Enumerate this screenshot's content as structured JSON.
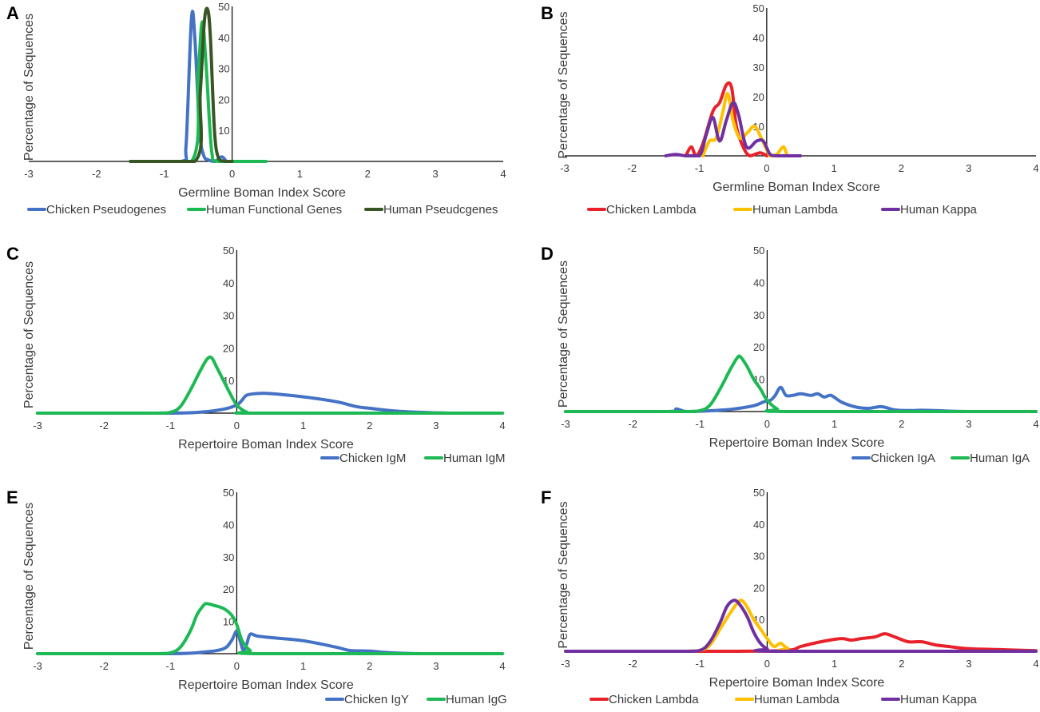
{
  "figure": {
    "ylabel": "Percentage of Sequences",
    "xticks": [
      "-3",
      "-2",
      "-1",
      "0",
      "1",
      "2",
      "3",
      "4"
    ],
    "yticks": [
      "10",
      "20",
      "30",
      "40",
      "50"
    ]
  },
  "colors": {
    "chicken_blue": "#4472c4",
    "human_green": "#1db954",
    "human_pseudo_darkgreen": "#375623",
    "chicken_lambda_red": "#e8212a",
    "human_lambda_yellow": "#ffc000",
    "human_kappa_purple": "#7030a0",
    "axis": "#000000"
  },
  "chart_data": [
    {
      "id": "A",
      "type": "line",
      "letter": "A",
      "xlabel": "Germline Boman Index Score",
      "ylabel": "Percentage of Sequences",
      "xlim": [
        -3,
        4
      ],
      "ylim": [
        0,
        50
      ],
      "legend_position": "bottom",
      "series": [
        {
          "name": "Chicken Pseudogenes",
          "color": "#4472c4",
          "points": [
            [
              -1.5,
              0
            ],
            [
              -0.75,
              0
            ],
            [
              -0.68,
              5
            ],
            [
              -0.6,
              46
            ],
            [
              -0.55,
              40
            ],
            [
              -0.48,
              10
            ],
            [
              -0.42,
              2
            ],
            [
              -0.35,
              0.5
            ],
            [
              -0.25,
              0
            ],
            [
              -0.15,
              1.5
            ],
            [
              -0.08,
              0
            ],
            [
              0,
              0
            ]
          ]
        },
        {
          "name": "Human Functional Genes",
          "color": "#1db954",
          "points": [
            [
              -1.5,
              0
            ],
            [
              -0.6,
              0
            ],
            [
              -0.5,
              28
            ],
            [
              -0.44,
              45
            ],
            [
              -0.38,
              30
            ],
            [
              -0.3,
              3
            ],
            [
              -0.2,
              0
            ],
            [
              0.5,
              0
            ]
          ]
        },
        {
          "name": "Human Pseudcgenes",
          "color": "#375623",
          "points": [
            [
              -1.5,
              0
            ],
            [
              -0.55,
              0
            ],
            [
              -0.47,
              22
            ],
            [
              -0.41,
              45
            ],
            [
              -0.36,
              49
            ],
            [
              -0.32,
              40
            ],
            [
              -0.26,
              10
            ],
            [
              -0.2,
              1
            ],
            [
              -0.1,
              0
            ],
            [
              0,
              0
            ]
          ]
        }
      ]
    },
    {
      "id": "B",
      "type": "line",
      "letter": "B",
      "xlabel": "Germline Boman Index Score",
      "ylabel": "Percentage of Sequences",
      "xlim": [
        -3,
        4
      ],
      "ylim": [
        0,
        50
      ],
      "legend_position": "bottom",
      "series": [
        {
          "name": "Chicken Lambda",
          "color": "#e8212a",
          "points": [
            [
              -1.2,
              0
            ],
            [
              -1.12,
              3
            ],
            [
              -1.05,
              0
            ],
            [
              -0.95,
              4
            ],
            [
              -0.8,
              15
            ],
            [
              -0.7,
              18
            ],
            [
              -0.6,
              24
            ],
            [
              -0.52,
              23
            ],
            [
              -0.45,
              10
            ],
            [
              -0.35,
              3
            ],
            [
              -0.25,
              0
            ],
            [
              -0.1,
              1
            ],
            [
              0,
              0
            ]
          ]
        },
        {
          "name": "Human Lambda",
          "color": "#ffc000",
          "points": [
            [
              -0.95,
              0
            ],
            [
              -0.85,
              5
            ],
            [
              -0.75,
              6
            ],
            [
              -0.65,
              15
            ],
            [
              -0.58,
              21
            ],
            [
              -0.5,
              12
            ],
            [
              -0.4,
              6
            ],
            [
              -0.28,
              8
            ],
            [
              -0.18,
              10
            ],
            [
              -0.08,
              6
            ],
            [
              0.05,
              0
            ],
            [
              0.15,
              0.5
            ],
            [
              0.25,
              3
            ],
            [
              0.32,
              0
            ],
            [
              0.5,
              0
            ]
          ]
        },
        {
          "name": "Human Kappa",
          "color": "#7030a0",
          "points": [
            [
              -1.5,
              0
            ],
            [
              -1.35,
              0.5
            ],
            [
              -1.2,
              0
            ],
            [
              -1.0,
              0
            ],
            [
              -0.9,
              7
            ],
            [
              -0.8,
              13
            ],
            [
              -0.7,
              5
            ],
            [
              -0.6,
              12
            ],
            [
              -0.5,
              18
            ],
            [
              -0.42,
              14
            ],
            [
              -0.3,
              3
            ],
            [
              -0.15,
              5
            ],
            [
              -0.05,
              5
            ],
            [
              0.05,
              0.5
            ],
            [
              0.15,
              0
            ],
            [
              0.5,
              0
            ]
          ]
        }
      ]
    },
    {
      "id": "C",
      "type": "line",
      "letter": "C",
      "xlabel": "Repertoire Boman Index Score",
      "ylabel": "Percentage of Sequences",
      "xlim": [
        -3,
        4
      ],
      "ylim": [
        0,
        50
      ],
      "legend_position": "bottom-right",
      "series": [
        {
          "name": "Chicken IgM",
          "color": "#4472c4",
          "points": [
            [
              -3,
              0
            ],
            [
              -1.0,
              0
            ],
            [
              -0.5,
              0.4
            ],
            [
              -0.2,
              1.2
            ],
            [
              0,
              2.5
            ],
            [
              0.08,
              4
            ],
            [
              0.15,
              5.5
            ],
            [
              0.3,
              6
            ],
            [
              0.5,
              6
            ],
            [
              1.0,
              5
            ],
            [
              1.5,
              3.5
            ],
            [
              1.8,
              2
            ],
            [
              2.0,
              1.5
            ],
            [
              2.3,
              0.8
            ],
            [
              2.7,
              0.3
            ],
            [
              3.2,
              0
            ],
            [
              4,
              0
            ]
          ]
        },
        {
          "name": "Human IgM",
          "color": "#1db954",
          "points": [
            [
              -3,
              0
            ],
            [
              -1.3,
              0
            ],
            [
              -1.0,
              0.3
            ],
            [
              -0.85,
              2
            ],
            [
              -0.7,
              7
            ],
            [
              -0.55,
              13
            ],
            [
              -0.45,
              16.5
            ],
            [
              -0.38,
              17
            ],
            [
              -0.3,
              14
            ],
            [
              -0.2,
              10
            ],
            [
              -0.1,
              6
            ],
            [
              0,
              2.5
            ],
            [
              0.15,
              0.3
            ],
            [
              0.3,
              0
            ],
            [
              4,
              0
            ]
          ]
        }
      ]
    },
    {
      "id": "D",
      "type": "line",
      "letter": "D",
      "xlabel": "Repertoire Boman Index Score",
      "ylabel": "Percentage of Sequences",
      "xlim": [
        -3,
        4
      ],
      "ylim": [
        0,
        50
      ],
      "legend_position": "bottom-right",
      "series": [
        {
          "name": "Chicken IgA",
          "color": "#4472c4",
          "points": [
            [
              -3,
              0
            ],
            [
              -1.5,
              0
            ],
            [
              -1.35,
              0.8
            ],
            [
              -1.2,
              0
            ],
            [
              -0.8,
              0.3
            ],
            [
              -0.5,
              0.8
            ],
            [
              -0.2,
              1.8
            ],
            [
              -0.05,
              3
            ],
            [
              0.05,
              3.5
            ],
            [
              0.12,
              5
            ],
            [
              0.2,
              7.5
            ],
            [
              0.28,
              5
            ],
            [
              0.38,
              5
            ],
            [
              0.5,
              5.5
            ],
            [
              0.65,
              5
            ],
            [
              0.75,
              5.5
            ],
            [
              0.85,
              4.5
            ],
            [
              0.95,
              5
            ],
            [
              1.1,
              3
            ],
            [
              1.3,
              1.5
            ],
            [
              1.5,
              1
            ],
            [
              1.7,
              1.5
            ],
            [
              1.9,
              0.5
            ],
            [
              2.1,
              0.3
            ],
            [
              2.3,
              0.4
            ],
            [
              2.5,
              0.3
            ],
            [
              3.0,
              0
            ],
            [
              4,
              0
            ]
          ]
        },
        {
          "name": "Human IgA",
          "color": "#1db954",
          "points": [
            [
              -3,
              0
            ],
            [
              -1.3,
              0
            ],
            [
              -1.0,
              0.3
            ],
            [
              -0.85,
              2
            ],
            [
              -0.7,
              7
            ],
            [
              -0.55,
              13
            ],
            [
              -0.45,
              16.5
            ],
            [
              -0.4,
              17
            ],
            [
              -0.3,
              14
            ],
            [
              -0.2,
              10
            ],
            [
              -0.1,
              7
            ],
            [
              0,
              3.5
            ],
            [
              0.15,
              0.8
            ],
            [
              0.3,
              0
            ],
            [
              4,
              0
            ]
          ]
        }
      ]
    },
    {
      "id": "E",
      "type": "line",
      "letter": "E",
      "xlabel": "Repertoire Boman Index Score",
      "ylabel": "Percentage of Sequences",
      "xlim": [
        -3,
        4
      ],
      "ylim": [
        0,
        50
      ],
      "legend_position": "bottom-right",
      "series": [
        {
          "name": "Chicken IgY",
          "color": "#4472c4",
          "points": [
            [
              -3,
              0
            ],
            [
              -1.0,
              0
            ],
            [
              -0.5,
              0.5
            ],
            [
              -0.2,
              1.5
            ],
            [
              -0.08,
              4
            ],
            [
              0,
              7
            ],
            [
              0.05,
              4
            ],
            [
              0.1,
              1
            ],
            [
              0.15,
              3
            ],
            [
              0.2,
              6
            ],
            [
              0.3,
              5.5
            ],
            [
              0.5,
              5
            ],
            [
              1.0,
              4
            ],
            [
              1.5,
              2
            ],
            [
              1.7,
              1
            ],
            [
              2.0,
              0.8
            ],
            [
              2.3,
              0.3
            ],
            [
              2.8,
              0
            ],
            [
              4,
              0
            ]
          ]
        },
        {
          "name": "Human IgG",
          "color": "#1db954",
          "points": [
            [
              -3,
              0
            ],
            [
              -1.3,
              0
            ],
            [
              -1.0,
              0.3
            ],
            [
              -0.85,
              2
            ],
            [
              -0.7,
              7
            ],
            [
              -0.6,
              12
            ],
            [
              -0.5,
              15
            ],
            [
              -0.45,
              15.5
            ],
            [
              -0.35,
              15
            ],
            [
              -0.2,
              14
            ],
            [
              -0.08,
              12
            ],
            [
              0,
              9
            ],
            [
              0.08,
              4
            ],
            [
              0.2,
              1
            ],
            [
              0.35,
              0
            ],
            [
              4,
              0
            ]
          ]
        }
      ]
    },
    {
      "id": "F",
      "type": "line",
      "letter": "F",
      "xlabel": "Repertoire Boman Index Score",
      "ylabel": "Percentage of Sequences",
      "xlim": [
        -3,
        4
      ],
      "ylim": [
        0,
        50
      ],
      "legend_position": "bottom",
      "series": [
        {
          "name": "Chicken Lambda",
          "color": "#e8212a",
          "points": [
            [
              -3,
              0
            ],
            [
              -0.5,
              0
            ],
            [
              0.3,
              0.3
            ],
            [
              0.5,
              1.5
            ],
            [
              0.8,
              3
            ],
            [
              1.1,
              4
            ],
            [
              1.25,
              3.5
            ],
            [
              1.4,
              4
            ],
            [
              1.6,
              4.5
            ],
            [
              1.75,
              5.5
            ],
            [
              1.9,
              4.5
            ],
            [
              2.1,
              3
            ],
            [
              2.3,
              3
            ],
            [
              2.5,
              2
            ],
            [
              2.7,
              1.5
            ],
            [
              3.0,
              0.8
            ],
            [
              3.5,
              0.5
            ],
            [
              4,
              0.2
            ]
          ]
        },
        {
          "name": "Human Lambda",
          "color": "#ffc000",
          "points": [
            [
              -3,
              0
            ],
            [
              -1.3,
              0
            ],
            [
              -1.0,
              0.3
            ],
            [
              -0.85,
              2
            ],
            [
              -0.7,
              7
            ],
            [
              -0.55,
              12
            ],
            [
              -0.45,
              15
            ],
            [
              -0.38,
              16
            ],
            [
              -0.3,
              14
            ],
            [
              -0.2,
              10
            ],
            [
              -0.1,
              7
            ],
            [
              0,
              4
            ],
            [
              0.1,
              1.5
            ],
            [
              0.2,
              2.5
            ],
            [
              0.3,
              1
            ],
            [
              0.5,
              0
            ],
            [
              4,
              0
            ]
          ]
        },
        {
          "name": "Human Kappa",
          "color": "#7030a0",
          "points": [
            [
              -3,
              0
            ],
            [
              -1.3,
              0
            ],
            [
              -1.0,
              0.3
            ],
            [
              -0.85,
              3
            ],
            [
              -0.7,
              9
            ],
            [
              -0.6,
              14
            ],
            [
              -0.5,
              16
            ],
            [
              -0.42,
              15
            ],
            [
              -0.3,
              11
            ],
            [
              -0.2,
              6
            ],
            [
              -0.1,
              2.5
            ],
            [
              0,
              0.8
            ],
            [
              0.15,
              0
            ],
            [
              4,
              0
            ]
          ]
        }
      ]
    }
  ]
}
